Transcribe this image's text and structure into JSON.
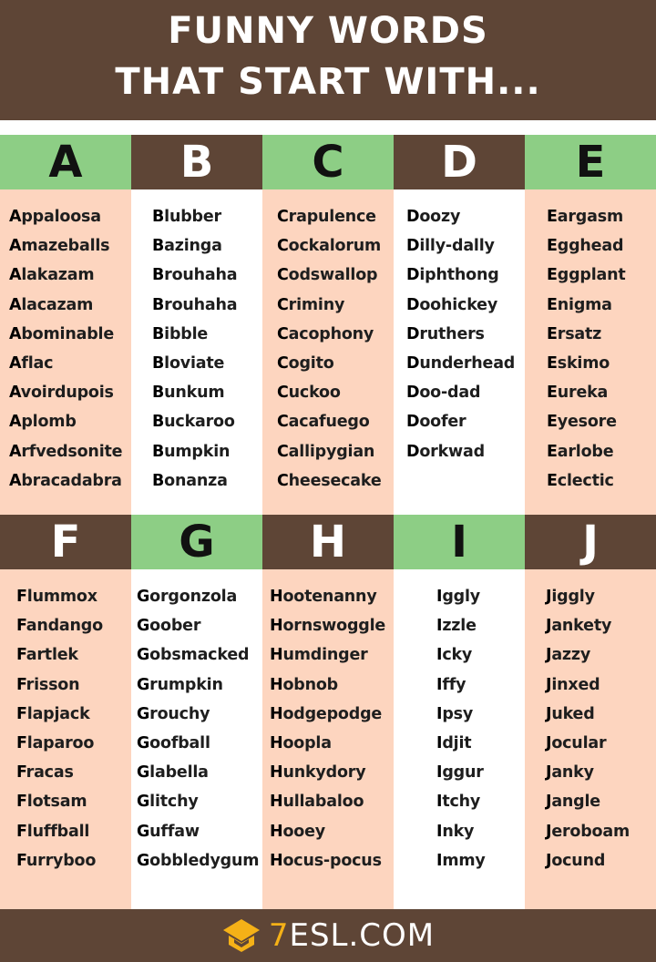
{
  "title": {
    "line1": "FUNNY WORDS",
    "line2": "THAT START WITH..."
  },
  "colors": {
    "brown": "#5e4536",
    "green": "#8dce85",
    "peach": "#fdd5bf",
    "logo": "#f5b117"
  },
  "sections": [
    {
      "columns": [
        {
          "letter": "A",
          "words": [
            "Appaloosa",
            "Amazeballs",
            "Alakazam",
            "Alacazam",
            "Abominable",
            "Aflac",
            "Avoirdupois",
            "Aplomb",
            "Arfvedsonite",
            "Abracadabra"
          ]
        },
        {
          "letter": "B",
          "words": [
            "Blubber",
            "Bazinga",
            "Brouhaha",
            "Brouhaha",
            "Bibble",
            "Bloviate",
            "Bunkum",
            "Buckaroo",
            "Bumpkin",
            "Bonanza"
          ]
        },
        {
          "letter": "C",
          "words": [
            "Crapulence",
            "Cockalorum",
            "Codswallop",
            "Criminy",
            "Cacophony",
            "Cogito",
            "Cuckoo",
            "Cacafuego",
            "Callipygian",
            "Cheesecake"
          ]
        },
        {
          "letter": "D",
          "words": [
            "Doozy",
            "Dilly-dally",
            "Diphthong",
            "Doohickey",
            "Druthers",
            "Dunderhead",
            "Doo-dad",
            "Doofer",
            "Dorkwad"
          ]
        },
        {
          "letter": "E",
          "words": [
            "Eargasm",
            "Egghead",
            "Eggplant",
            "Enigma",
            "Ersatz",
            "Eskimo",
            "Eureka",
            "Eyesore",
            "Earlobe",
            "Eclectic"
          ]
        }
      ]
    },
    {
      "columns": [
        {
          "letter": "F",
          "words": [
            "Flummox",
            "Fandango",
            "Fartlek",
            "Frisson",
            "Flapjack",
            "Flaparoo",
            "Fracas",
            "Flotsam",
            "Fluffball",
            "Furryboo"
          ]
        },
        {
          "letter": "G",
          "words": [
            "Gorgonzola",
            "Goober",
            "Gobsmacked",
            "Grumpkin",
            "Grouchy",
            "Goofball",
            "Glabella",
            "Glitchy",
            "Guffaw",
            "Gobbledygum"
          ]
        },
        {
          "letter": "H",
          "words": [
            "Hootenanny",
            "Hornswoggle",
            "Humdinger",
            "Hobnob",
            "Hodgepodge",
            "Hoopla",
            "Hunkydory",
            "Hullabaloo",
            "Hooey",
            "Hocus-pocus"
          ]
        },
        {
          "letter": "I",
          "words": [
            "Iggly",
            "Izzle",
            "Icky",
            "Iffy",
            "Ipsy",
            "Idjit",
            "Iggur",
            "Itchy",
            "Inky",
            "Immy"
          ]
        },
        {
          "letter": "J",
          "words": [
            "Jiggly",
            "Jankety",
            "Jazzy",
            "Jinxed",
            "Juked",
            "Jocular",
            "Janky",
            "Jangle",
            "Jeroboam",
            "Jocund"
          ]
        }
      ]
    }
  ],
  "footer": {
    "logo_prefix": "7",
    "logo_text": "ESL.COM"
  }
}
